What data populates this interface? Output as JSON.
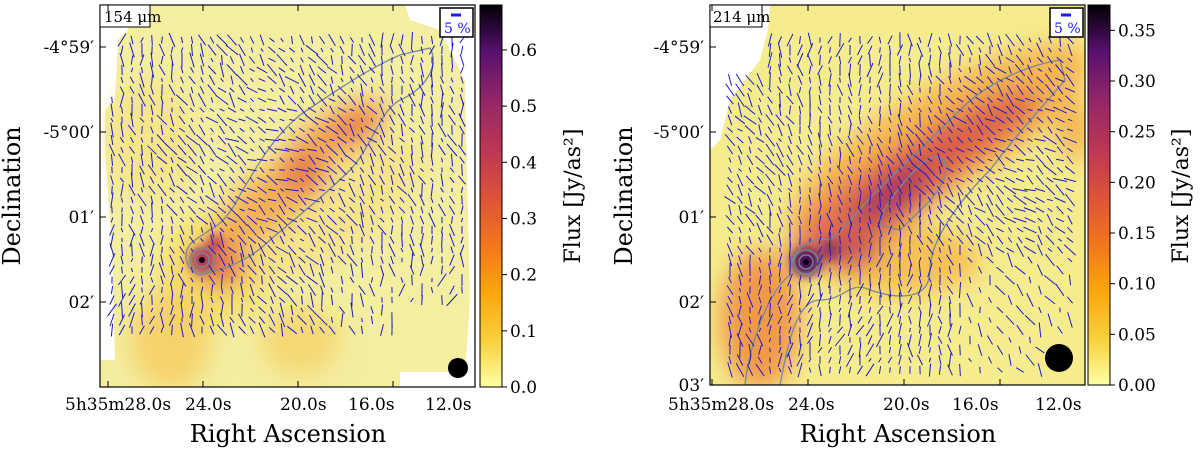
{
  "chart_data": [
    {
      "type": "heatmap",
      "wavelength_label": "154 μm",
      "scale_label": "5 %",
      "xlabel": "Right Ascension",
      "ylabel": "Declination",
      "x_ticks": [
        "5h35m28.0s",
        "24.0s",
        "20.0s",
        "16.0s",
        "12.0s"
      ],
      "y_ticks": [
        "-4°59′",
        "-5°00′",
        "01′",
        "02′"
      ],
      "colorbar": {
        "label": "Flux [Jy/as²]",
        "range": [
          0,
          0.68
        ],
        "ticks": [
          0.0,
          0.1,
          0.2,
          0.3,
          0.4,
          0.5,
          0.6
        ],
        "colormap": "inferno_r"
      },
      "peak_flux": 0.68,
      "contour_levels": 3,
      "vector_color": "#1a1acc",
      "contour_color": "#7a8a96",
      "beam": "filled circle, bottom-right"
    },
    {
      "type": "heatmap",
      "wavelength_label": "214 μm",
      "scale_label": "5 %",
      "xlabel": "Right Ascension",
      "ylabel": "Declination",
      "x_ticks": [
        "5h35m28.0s",
        "24.0s",
        "20.0s",
        "16.0s",
        "12.0s"
      ],
      "y_ticks": [
        "-4°59′",
        "-5°00′",
        "01′",
        "02′",
        "03′"
      ],
      "colorbar": {
        "label": "Flux [Jy/as²]",
        "range": [
          0,
          0.375
        ],
        "ticks": [
          0.0,
          0.05,
          0.1,
          0.15,
          0.2,
          0.25,
          0.3,
          0.35
        ],
        "colormap": "inferno_r"
      },
      "peak_flux": 0.375,
      "contour_levels": 3,
      "vector_color": "#1a1acc",
      "contour_color": "#7a8a96",
      "beam": "filled circle, bottom-right"
    }
  ]
}
